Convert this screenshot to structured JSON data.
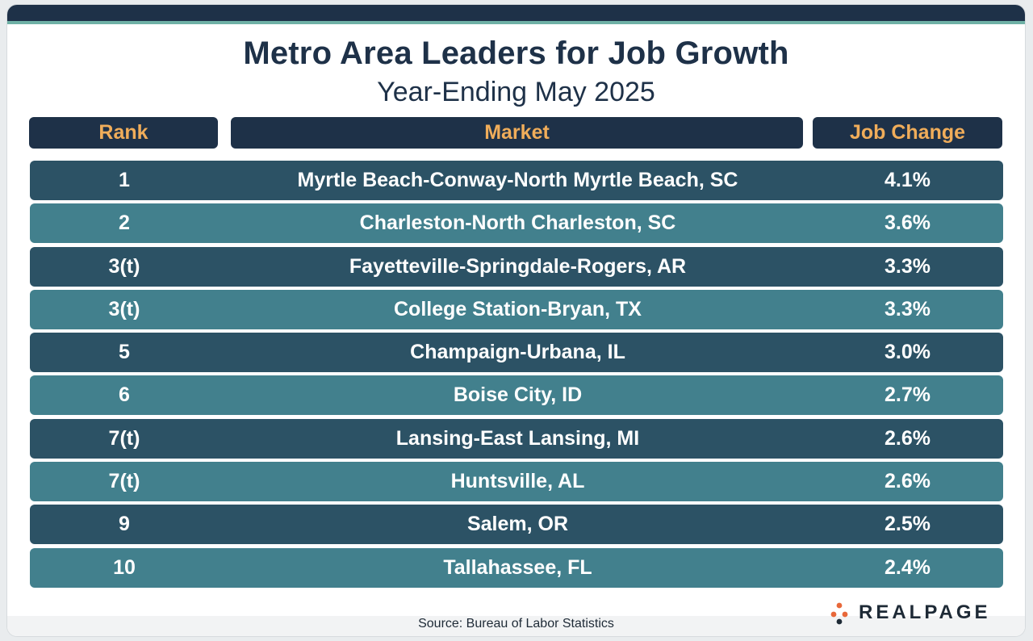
{
  "title": "Metro Area Leaders for Job Growth",
  "subtitle": "Year-Ending May 2025",
  "colors": {
    "header_bg": "#1e3148",
    "header_text": "#f0ad5a",
    "row_dark": "#2c5265",
    "row_light": "#42808d",
    "accent": "#6fb1a6",
    "logo_orange": "#e8683a"
  },
  "chart_data": {
    "type": "table",
    "title": "Metro Area Leaders for Job Growth",
    "subtitle": "Year-Ending May 2025",
    "columns": [
      "Rank",
      "Market",
      "Job Change"
    ],
    "rows": [
      {
        "rank": "1",
        "market": "Myrtle Beach-Conway-North Myrtle Beach, SC",
        "change": "4.1%"
      },
      {
        "rank": "2",
        "market": "Charleston-North Charleston, SC",
        "change": "3.6%"
      },
      {
        "rank": "3(t)",
        "market": "Fayetteville-Springdale-Rogers, AR",
        "change": "3.3%"
      },
      {
        "rank": "3(t)",
        "market": "College Station-Bryan, TX",
        "change": "3.3%"
      },
      {
        "rank": "5",
        "market": "Champaign-Urbana, IL",
        "change": "3.0%"
      },
      {
        "rank": "6",
        "market": "Boise City, ID",
        "change": "2.7%"
      },
      {
        "rank": "7(t)",
        "market": "Lansing-East Lansing, MI",
        "change": "2.6%"
      },
      {
        "rank": "7(t)",
        "market": "Huntsville, AL",
        "change": "2.6%"
      },
      {
        "rank": "9",
        "market": "Salem, OR",
        "change": "2.5%"
      },
      {
        "rank": "10",
        "market": "Tallahassee, FL",
        "change": "2.4%"
      }
    ]
  },
  "footer": {
    "source": "Source: Bureau of Labor Statistics",
    "logo_text": "REALPAGE",
    "logo_icon": "realpage-dots-icon"
  }
}
